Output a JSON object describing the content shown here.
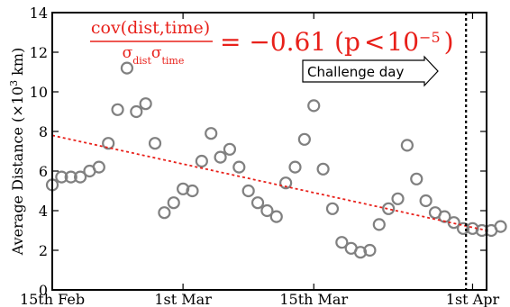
{
  "chart_data": {
    "type": "scatter",
    "x_start_date": "2014-02-15",
    "xlim": [
      0,
      46.5
    ],
    "ylim": [
      0,
      14
    ],
    "ylabel": "Average Distance (×10³ km)",
    "ylabel_prefix": "Average Distance (",
    "ylabel_mult": "×10",
    "ylabel_exp": "3",
    "ylabel_suffix": " km)",
    "y_ticks": [
      0,
      2,
      4,
      6,
      8,
      10,
      12,
      14
    ],
    "x_ticks": [
      {
        "value": 0,
        "label": "15th Feb"
      },
      {
        "value": 14,
        "label": "1st Mar"
      },
      {
        "value": 28,
        "label": "15th Mar"
      },
      {
        "value": 45,
        "label": "1st Apr"
      }
    ],
    "series": [
      {
        "marker": "open-circle",
        "color": "#808080",
        "points": [
          [
            0,
            5.3
          ],
          [
            1,
            5.7
          ],
          [
            2,
            5.7
          ],
          [
            3,
            5.7
          ],
          [
            4,
            6.0
          ],
          [
            5,
            6.2
          ],
          [
            6,
            7.4
          ],
          [
            7,
            9.1
          ],
          [
            8,
            11.2
          ],
          [
            9,
            9.0
          ],
          [
            10,
            9.4
          ],
          [
            11,
            7.4
          ],
          [
            12,
            3.9
          ],
          [
            13,
            4.4
          ],
          [
            14,
            5.1
          ],
          [
            15,
            5.0
          ],
          [
            16,
            6.5
          ],
          [
            17,
            7.9
          ],
          [
            18,
            6.7
          ],
          [
            19,
            7.1
          ],
          [
            20,
            6.2
          ],
          [
            21,
            5.0
          ],
          [
            22,
            4.4
          ],
          [
            23,
            4.0
          ],
          [
            24,
            3.7
          ],
          [
            25,
            5.4
          ],
          [
            26,
            6.2
          ],
          [
            27,
            7.6
          ],
          [
            28,
            9.3
          ],
          [
            29,
            6.1
          ],
          [
            30,
            4.1
          ],
          [
            31,
            2.4
          ],
          [
            32,
            2.1
          ],
          [
            33,
            1.9
          ],
          [
            34,
            2.0
          ],
          [
            35,
            3.3
          ],
          [
            36,
            4.1
          ],
          [
            37,
            4.6
          ],
          [
            38,
            7.3
          ],
          [
            39,
            5.6
          ],
          [
            40,
            4.5
          ],
          [
            41,
            3.9
          ],
          [
            42,
            3.7
          ],
          [
            43,
            3.4
          ],
          [
            44,
            3.1
          ],
          [
            45,
            3.1
          ],
          [
            46,
            3.0
          ],
          [
            47,
            3.0
          ],
          [
            48,
            3.2
          ]
        ]
      }
    ],
    "trend_line": {
      "x0": 0,
      "y0": 7.8,
      "x1": 46.5,
      "y1": 3.0,
      "color": "#e8201a",
      "style": "dotted"
    },
    "vline": {
      "x": 44.3,
      "color": "#000000",
      "style": "dotted"
    },
    "annotation": {
      "numerator": "cov(dist,time)",
      "den_sigma": "σ",
      "den_sub1": "dist",
      "den_sub2": "time",
      "value": "= −0.61",
      "p_open": "(p",
      "p_op": "<",
      "p_base": "10",
      "p_exp": "−5",
      "p_close": ")",
      "color": "#e8201a"
    },
    "callout": {
      "label": "Challenge day",
      "shape": "right-arrow"
    }
  }
}
